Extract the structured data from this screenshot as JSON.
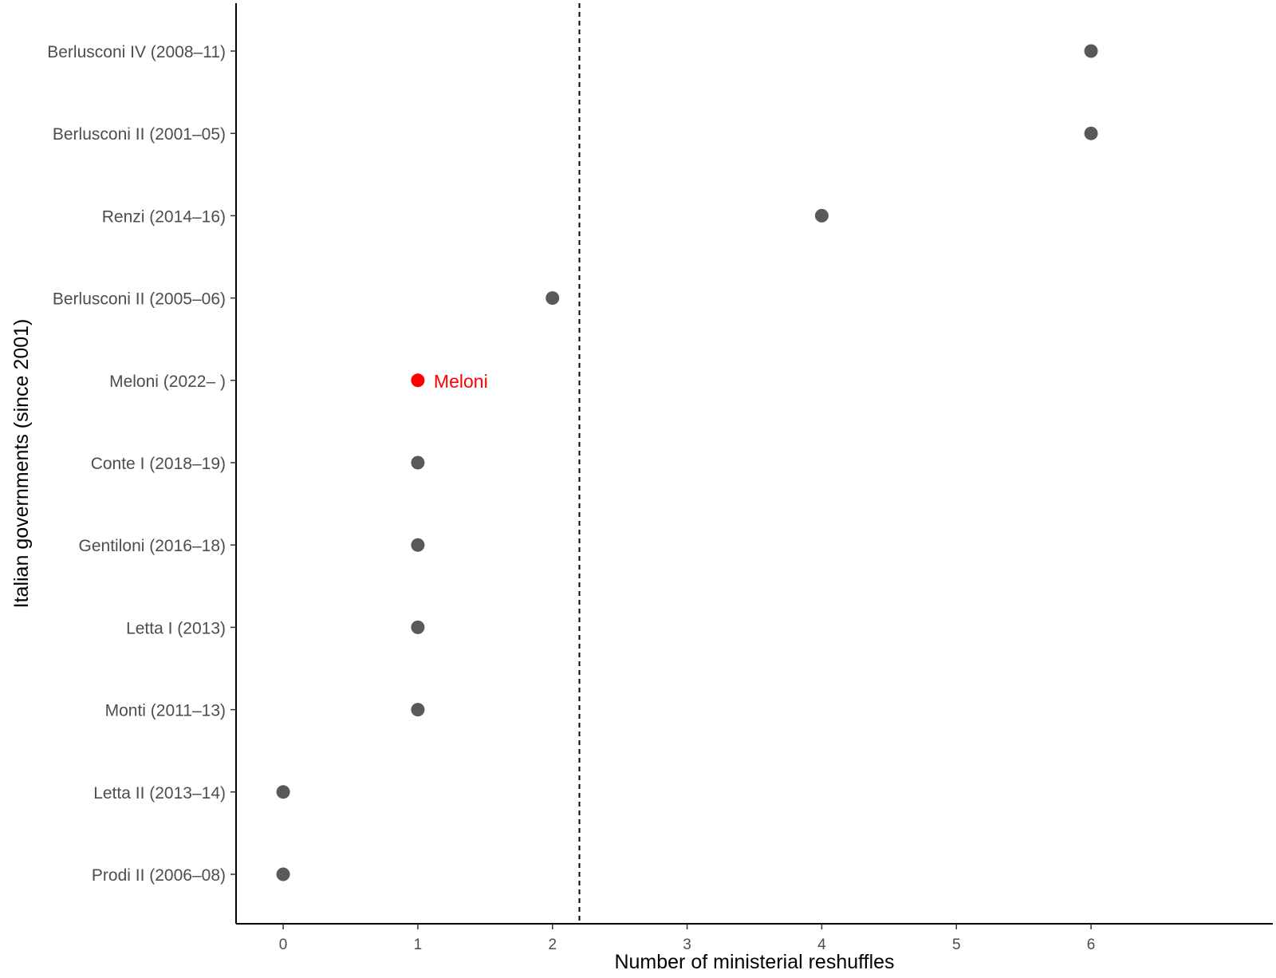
{
  "chart_data": {
    "type": "scatter",
    "title": "",
    "xlabel": "Number of ministerial reshuffles",
    "ylabel": "Italian governments (since 2001)",
    "xlim": [
      -0.35,
      7.35
    ],
    "x_ticks": [
      0,
      1,
      2,
      3,
      4,
      5,
      6
    ],
    "grid": false,
    "reference_line": {
      "x": 2.2,
      "style": "dashed",
      "color": "#000000"
    },
    "point_color": "#595959",
    "highlight_color": "#ff0000",
    "points": [
      {
        "label": "Berlusconi IV (2008–11)",
        "x": 6
      },
      {
        "label": "Berlusconi II (2001–05)",
        "x": 6
      },
      {
        "label": "Renzi (2014–16)",
        "x": 4
      },
      {
        "label": "Berlusconi II (2005–06)",
        "x": 2
      },
      {
        "label": "Meloni (2022– )",
        "x": 1,
        "highlight": true,
        "annotation": "Meloni"
      },
      {
        "label": "Conte I (2018–19)",
        "x": 1
      },
      {
        "label": "Gentiloni (2016–18)",
        "x": 1
      },
      {
        "label": "Letta I (2013)",
        "x": 1
      },
      {
        "label": "Monti (2011–13)",
        "x": 1
      },
      {
        "label": "Letta II (2013–14)",
        "x": 0
      },
      {
        "label": "Prodi II (2006–08)",
        "x": 0
      }
    ]
  }
}
